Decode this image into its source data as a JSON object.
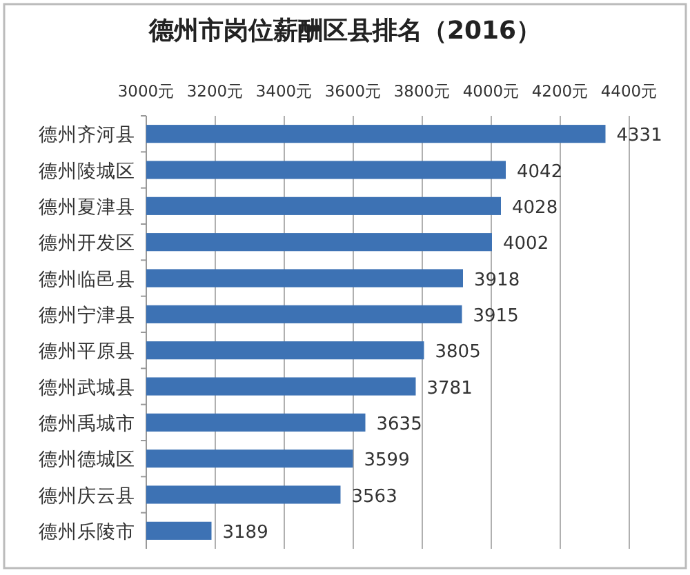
{
  "chart_data": {
    "type": "bar",
    "orientation": "horizontal",
    "title": "德州市岗位薪酬区县排名（2016）",
    "categories": [
      "德州齐河县",
      "德州陵城区",
      "德州夏津县",
      "德州开发区",
      "德州临邑县",
      "德州宁津县",
      "德州平原县",
      "德州武城县",
      "德州禹城市",
      "德州德城区",
      "德州庆云县",
      "德州乐陵市"
    ],
    "values": [
      4331,
      4042,
      4028,
      4002,
      3918,
      3915,
      3805,
      3781,
      3635,
      3599,
      3563,
      3189
    ],
    "color": "#3d72b4",
    "xlim": [
      3000,
      4400
    ],
    "xticks": [
      {
        "value": 3000,
        "label": "3000元"
      },
      {
        "value": 3200,
        "label": "3200元"
      },
      {
        "value": 3400,
        "label": "3400元"
      },
      {
        "value": 3600,
        "label": "3600元"
      },
      {
        "value": 3800,
        "label": "3800元"
      },
      {
        "value": 4000,
        "label": "4000元"
      },
      {
        "value": 4200,
        "label": "4200元"
      },
      {
        "value": 4400,
        "label": "4400元"
      }
    ],
    "data_labels": true,
    "grid": "x"
  }
}
